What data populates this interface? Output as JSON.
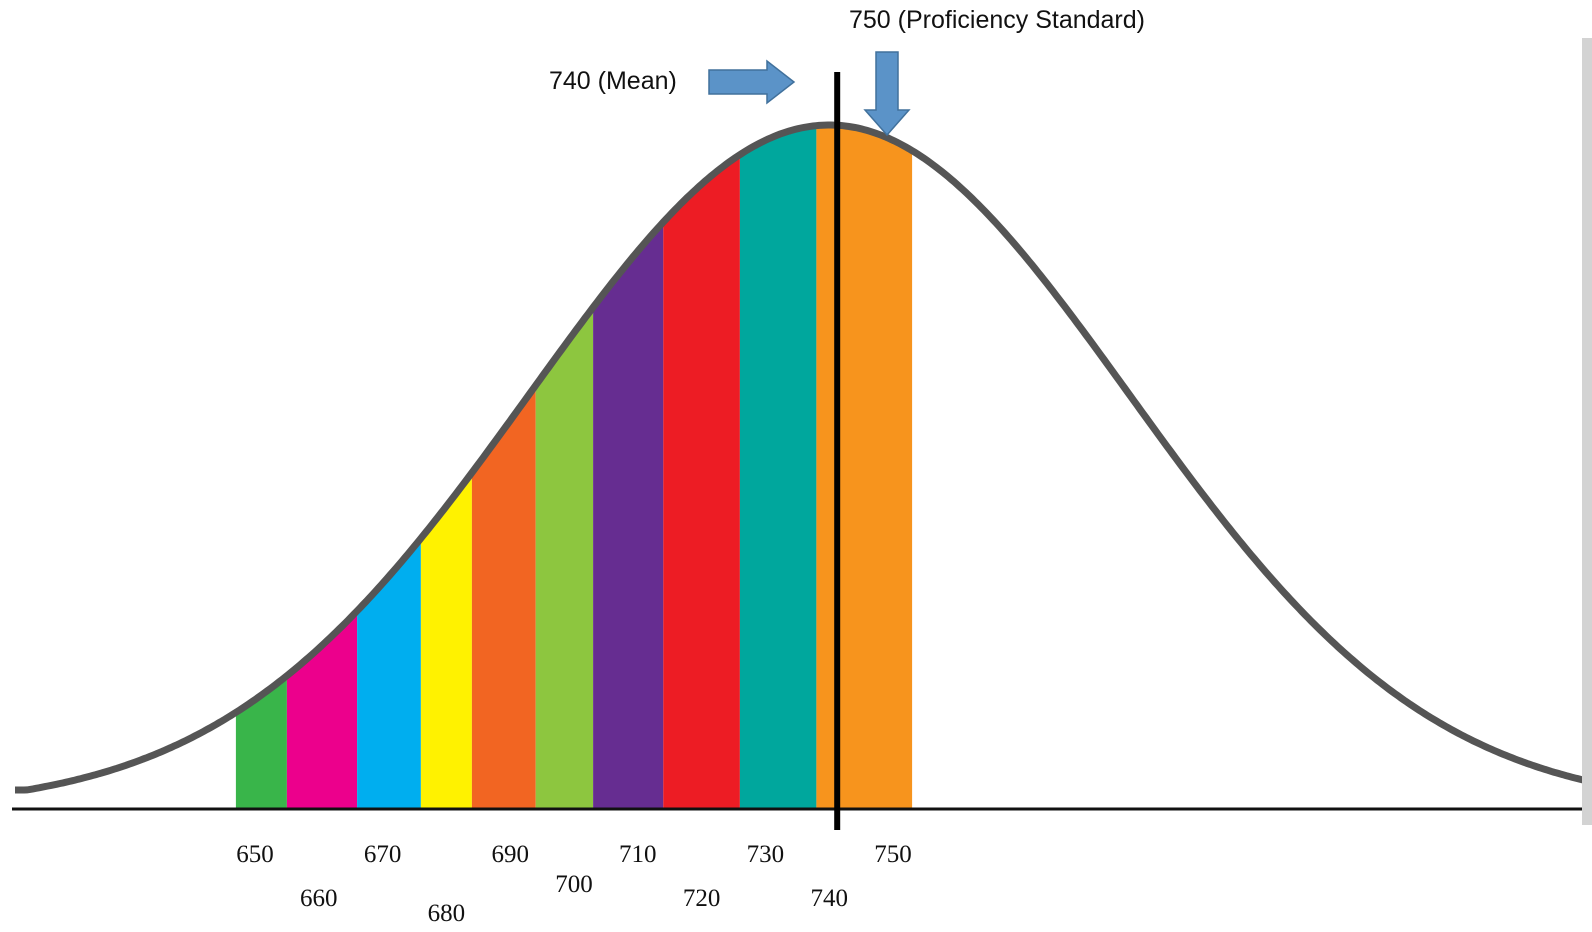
{
  "chart_data": {
    "type": "area",
    "title": "",
    "xlabel": "",
    "ylabel": "",
    "distribution": {
      "mean": 740
    },
    "xlim": [
      610,
      870
    ],
    "bands": [
      {
        "from": 647,
        "to": 655,
        "color": "#39b54a"
      },
      {
        "from": 655,
        "to": 666,
        "color": "#ec008c"
      },
      {
        "from": 666,
        "to": 676,
        "color": "#00aeef"
      },
      {
        "from": 676,
        "to": 684,
        "color": "#fff200"
      },
      {
        "from": 684,
        "to": 694,
        "color": "#f26522"
      },
      {
        "from": 694,
        "to": 703,
        "color": "#8dc63f"
      },
      {
        "from": 703,
        "to": 714,
        "color": "#662d91"
      },
      {
        "from": 714,
        "to": 726,
        "color": "#ed1c24"
      },
      {
        "from": 726,
        "to": 738,
        "color": "#00a79d"
      },
      {
        "from": 738,
        "to": 753,
        "color": "#f7941d"
      }
    ],
    "tick_labels": [
      {
        "value": 650,
        "text": "650",
        "row": 0
      },
      {
        "value": 660,
        "text": "660",
        "row": 2
      },
      {
        "value": 670,
        "text": "670",
        "row": 0
      },
      {
        "value": 680,
        "text": "680",
        "row": 3
      },
      {
        "value": 690,
        "text": "690",
        "row": 0
      },
      {
        "value": 700,
        "text": "700",
        "row": 1
      },
      {
        "value": 710,
        "text": "710",
        "row": 0
      },
      {
        "value": 720,
        "text": "720",
        "row": 2
      },
      {
        "value": 730,
        "text": "730",
        "row": 0
      },
      {
        "value": 740,
        "text": "740",
        "row": 2
      },
      {
        "value": 750,
        "text": "750",
        "row": 0
      }
    ],
    "annotations": [
      {
        "text": "740 (Mean)",
        "target": 740,
        "arrow": "right"
      },
      {
        "text": "750 (Proficiency Standard)",
        "target": 750,
        "arrow": "down"
      }
    ],
    "mean_line_value": 740,
    "curve_color": "#555555",
    "arrow_color": "#5b93c8"
  }
}
